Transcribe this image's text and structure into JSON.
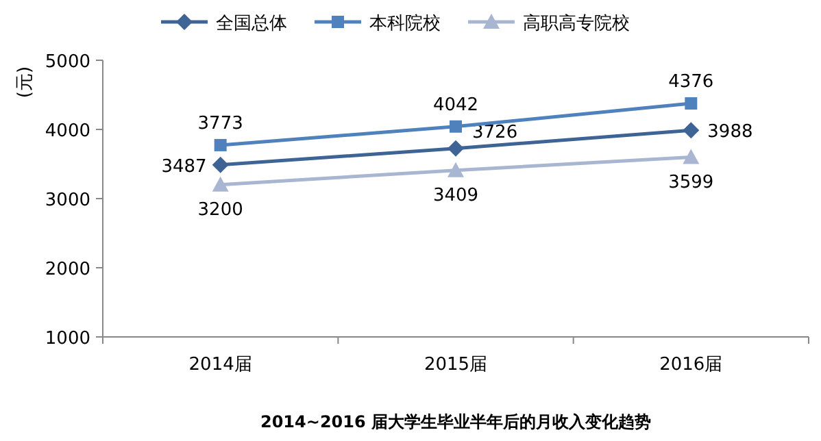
{
  "chart_data": {
    "type": "line",
    "title": "2014~2016 届大学生毕业半年后的月收入变化趋势",
    "ylabel": "(元)",
    "categories": [
      "2014届",
      "2015届",
      "2016届"
    ],
    "series": [
      {
        "name": "全国总体",
        "color": "#3e6395",
        "marker": "diamond",
        "values": [
          3487,
          3726,
          3988
        ]
      },
      {
        "name": "本科院校",
        "color": "#4f81bd",
        "marker": "square",
        "values": [
          3773,
          4042,
          4376
        ]
      },
      {
        "name": "高职高专院校",
        "color": "#a9b6d2",
        "marker": "triangle",
        "values": [
          3200,
          3409,
          3599
        ]
      }
    ],
    "ylim": [
      1000,
      5000
    ],
    "yticks": [
      1000,
      2000,
      3000,
      4000,
      5000
    ],
    "data_labels": true,
    "legend": "top",
    "grid": false
  }
}
